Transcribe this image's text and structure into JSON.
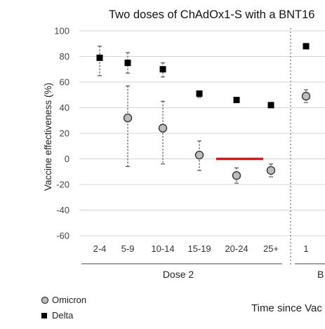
{
  "chart_data": {
    "type": "scatter",
    "title": "Two doses of ChAdOx1-S with a BNT16",
    "ylabel": "Vaccine effectiveness (%)",
    "ylim": [
      -60,
      100
    ],
    "yticks": [
      100,
      80,
      60,
      40,
      20,
      0,
      -20,
      -40,
      -60
    ],
    "grid": true,
    "categories": [
      "2-4",
      "5-9",
      "10-14",
      "15-19",
      "20-24",
      "25+",
      "1",
      "B"
    ],
    "groups": [
      {
        "label": "Dose 2",
        "categories": [
          "2-4",
          "5-9",
          "10-14",
          "15-19",
          "20-24",
          "25+"
        ]
      },
      {
        "label": "B",
        "categories": [
          "1"
        ]
      }
    ],
    "xlabel": "Time since Vac",
    "series": [
      {
        "name": "Omicron",
        "marker": "circle",
        "color": "#bdbdbd",
        "points": [
          {
            "x": "5-9",
            "y": 32,
            "low": -6,
            "high": 57
          },
          {
            "x": "10-14",
            "y": 24,
            "low": -4,
            "high": 45
          },
          {
            "x": "15-19",
            "y": 3,
            "low": -9,
            "high": 14
          },
          {
            "x": "20-24",
            "y": -13,
            "low": -19,
            "high": -7
          },
          {
            "x": "25+",
            "y": -9,
            "low": -14,
            "high": -4
          },
          {
            "x": "1",
            "y": 49,
            "low": 44,
            "high": 54
          }
        ]
      },
      {
        "name": "Delta",
        "marker": "square",
        "color": "#000000",
        "points": [
          {
            "x": "2-4",
            "y": 79,
            "low": 65,
            "high": 88
          },
          {
            "x": "5-9",
            "y": 75,
            "low": 67,
            "high": 83
          },
          {
            "x": "10-14",
            "y": 70,
            "low": 64,
            "high": 75
          },
          {
            "x": "15-19",
            "y": 51,
            "low": 48,
            "high": 53
          },
          {
            "x": "20-24",
            "y": 46
          },
          {
            "x": "25+",
            "y": 42
          },
          {
            "x": "1",
            "y": 88
          }
        ]
      }
    ],
    "annotations": [
      {
        "type": "hline",
        "color": "#d7191c",
        "y": 0,
        "from": "15-19",
        "to": "20-24"
      }
    ],
    "legend": {
      "position": "bottom-left",
      "items": [
        "Omicron",
        "Delta"
      ]
    }
  },
  "colors": {
    "grid": "#d4d4d4",
    "highlight": "#d7191c"
  }
}
